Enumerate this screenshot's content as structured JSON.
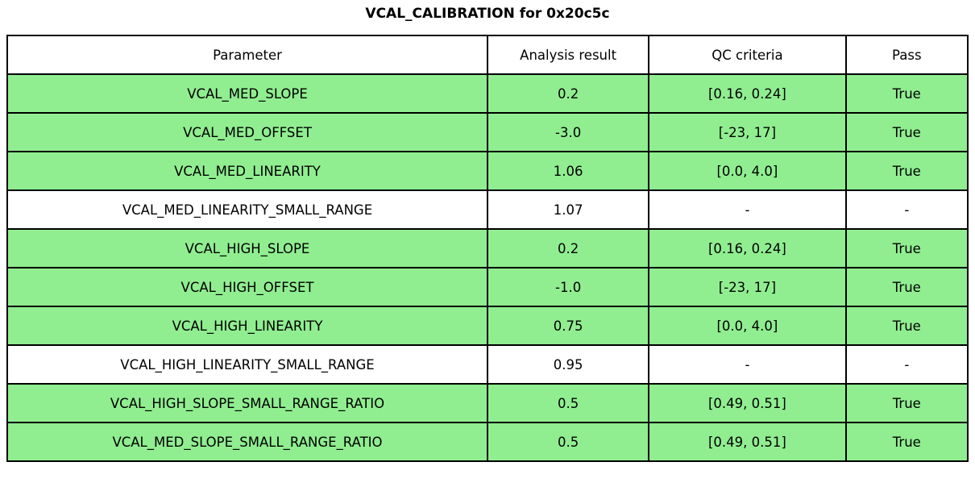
{
  "title": "VCAL_CALIBRATION for 0x20c5c",
  "colors": {
    "pass_green": "#90ee90",
    "row_white": "#ffffff",
    "border": "#000000"
  },
  "table": {
    "headers": [
      "Parameter",
      "Analysis result",
      "QC criteria",
      "Pass"
    ],
    "rows": [
      {
        "parameter": "VCAL_MED_SLOPE",
        "result": "0.2",
        "qc": "[0.16, 0.24]",
        "pass": "True",
        "highlight": true
      },
      {
        "parameter": "VCAL_MED_OFFSET",
        "result": "-3.0",
        "qc": "[-23, 17]",
        "pass": "True",
        "highlight": true
      },
      {
        "parameter": "VCAL_MED_LINEARITY",
        "result": "1.06",
        "qc": "[0.0, 4.0]",
        "pass": "True",
        "highlight": true
      },
      {
        "parameter": "VCAL_MED_LINEARITY_SMALL_RANGE",
        "result": "1.07",
        "qc": "-",
        "pass": "-",
        "highlight": false
      },
      {
        "parameter": "VCAL_HIGH_SLOPE",
        "result": "0.2",
        "qc": "[0.16, 0.24]",
        "pass": "True",
        "highlight": true
      },
      {
        "parameter": "VCAL_HIGH_OFFSET",
        "result": "-1.0",
        "qc": "[-23, 17]",
        "pass": "True",
        "highlight": true
      },
      {
        "parameter": "VCAL_HIGH_LINEARITY",
        "result": "0.75",
        "qc": "[0.0, 4.0]",
        "pass": "True",
        "highlight": true
      },
      {
        "parameter": "VCAL_HIGH_LINEARITY_SMALL_RANGE",
        "result": "0.95",
        "qc": "-",
        "pass": "-",
        "highlight": false
      },
      {
        "parameter": "VCAL_HIGH_SLOPE_SMALL_RANGE_RATIO",
        "result": "0.5",
        "qc": "[0.49, 0.51]",
        "pass": "True",
        "highlight": true
      },
      {
        "parameter": "VCAL_MED_SLOPE_SMALL_RANGE_RATIO",
        "result": "0.5",
        "qc": "[0.49, 0.51]",
        "pass": "True",
        "highlight": true
      }
    ]
  },
  "chart_data": {
    "type": "table",
    "title": "VCAL_CALIBRATION for 0x20c5c",
    "columns": [
      "Parameter",
      "Analysis result",
      "QC criteria",
      "Pass"
    ],
    "rows": [
      [
        "VCAL_MED_SLOPE",
        "0.2",
        "[0.16, 0.24]",
        "True"
      ],
      [
        "VCAL_MED_OFFSET",
        "-3.0",
        "[-23, 17]",
        "True"
      ],
      [
        "VCAL_MED_LINEARITY",
        "1.06",
        "[0.0, 4.0]",
        "True"
      ],
      [
        "VCAL_MED_LINEARITY_SMALL_RANGE",
        "1.07",
        "-",
        "-"
      ],
      [
        "VCAL_HIGH_SLOPE",
        "0.2",
        "[0.16, 0.24]",
        "True"
      ],
      [
        "VCAL_HIGH_OFFSET",
        "-1.0",
        "[-23, 17]",
        "True"
      ],
      [
        "VCAL_HIGH_LINEARITY",
        "0.75",
        "[0.0, 4.0]",
        "True"
      ],
      [
        "VCAL_HIGH_LINEARITY_SMALL_RANGE",
        "0.95",
        "-",
        "-"
      ],
      [
        "VCAL_HIGH_SLOPE_SMALL_RANGE_RATIO",
        "0.5",
        "[0.49, 0.51]",
        "True"
      ],
      [
        "VCAL_MED_SLOPE_SMALL_RANGE_RATIO",
        "0.5",
        "[0.49, 0.51]",
        "True"
      ]
    ],
    "row_highlight_green": [
      true,
      true,
      true,
      false,
      true,
      true,
      true,
      false,
      true,
      true
    ]
  }
}
